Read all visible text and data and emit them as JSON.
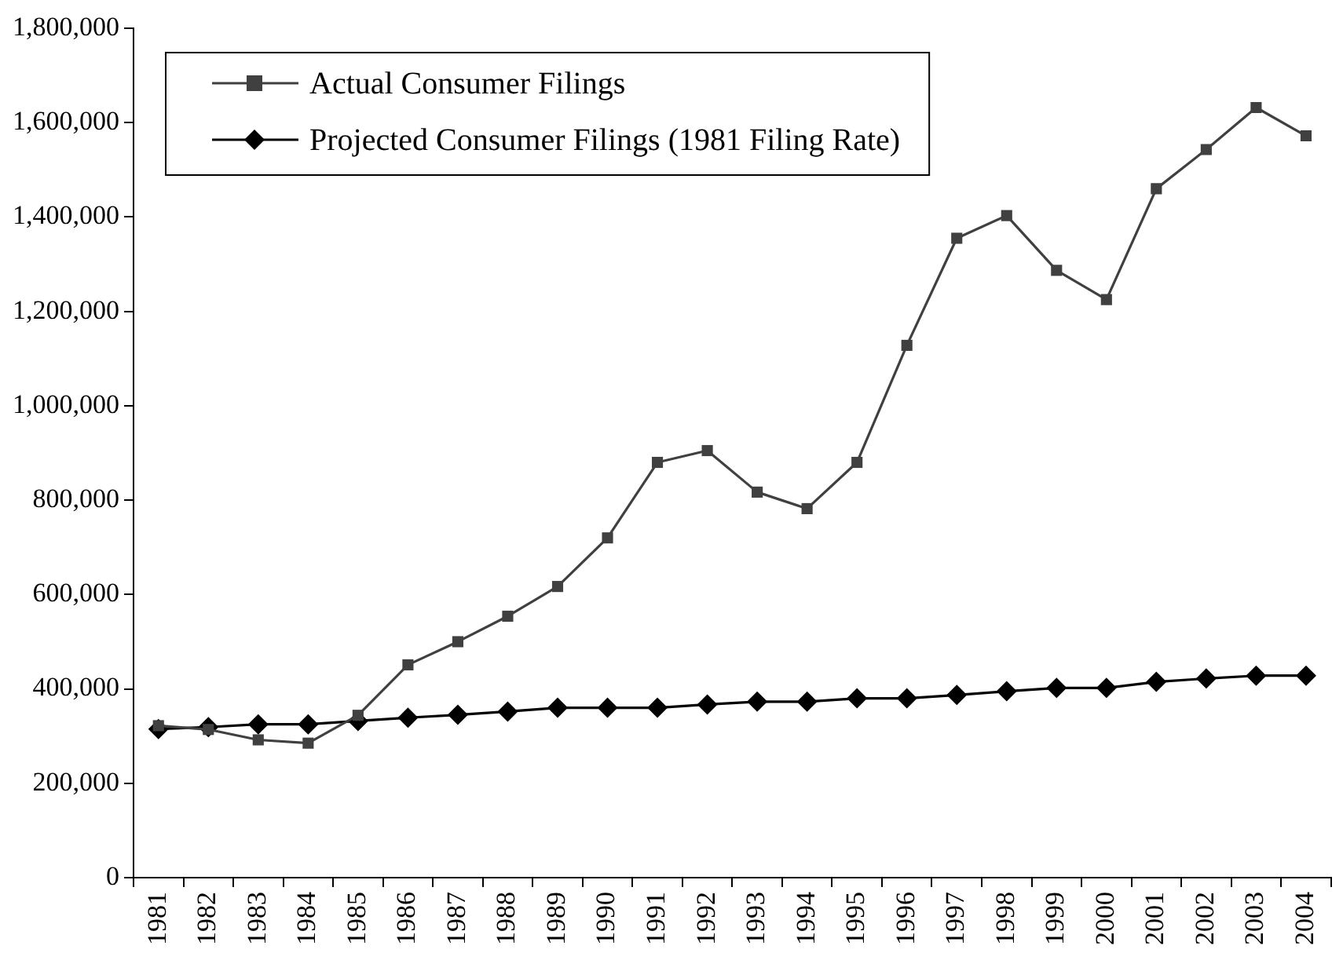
{
  "chart_data": {
    "type": "line",
    "categories": [
      "1981",
      "1982",
      "1983",
      "1984",
      "1985",
      "1986",
      "1987",
      "1988",
      "1989",
      "1990",
      "1991",
      "1992",
      "1993",
      "1994",
      "1995",
      "1996",
      "1997",
      "1998",
      "1999",
      "2000",
      "2001",
      "2002",
      "2003",
      "2004"
    ],
    "series": [
      {
        "name": "Actual Consumer Filings",
        "color": "#404040",
        "marker": "square",
        "values": [
          322000,
          314000,
          292000,
          285000,
          344000,
          451000,
          500000,
          554000,
          617000,
          720000,
          880000,
          905000,
          817000,
          782000,
          880000,
          1128000,
          1355000,
          1403000,
          1287000,
          1225000,
          1460000,
          1543000,
          1632000,
          1572000
        ]
      },
      {
        "name": "Projected Consumer Filings (1981 Filing Rate)",
        "color": "#000000",
        "marker": "diamond",
        "values": [
          315000,
          319000,
          325000,
          325000,
          332000,
          339000,
          345000,
          352000,
          360000,
          360000,
          360000,
          367000,
          373000,
          373000,
          380000,
          380000,
          387000,
          395000,
          402000,
          402000,
          415000,
          422000,
          428000,
          428000
        ]
      }
    ],
    "ylim": [
      0,
      1800000
    ],
    "yticks": [
      0,
      {
        "value": 200000,
        "label": "200,000"
      },
      {
        "value": 400000,
        "label": "400,000"
      },
      {
        "value": 600000,
        "label": "600,000"
      },
      {
        "value": 800000,
        "label": "800,000"
      },
      {
        "value": 1000000,
        "label": "1,000,000"
      },
      {
        "value": 1200000,
        "label": "1,200,000"
      },
      {
        "value": 1400000,
        "label": "1,400,000"
      },
      {
        "value": 1600000,
        "label": "1,600,000"
      },
      {
        "value": 1800000,
        "label": "1,800,000"
      }
    ],
    "grid": false,
    "legend": "top left",
    "line_style": "solid"
  }
}
